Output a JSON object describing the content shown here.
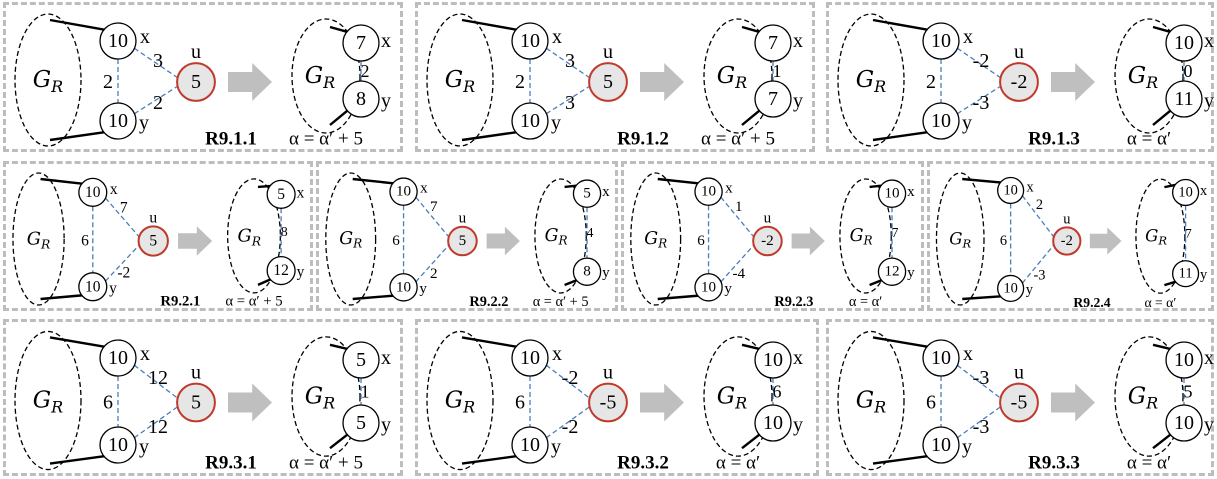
{
  "labels": {
    "gr_main": "G",
    "gr_sub": "R",
    "x": "x",
    "y": "y",
    "u": "u"
  },
  "panels": [
    {
      "id": "R9.1.1",
      "x_val": "10",
      "y_val": "10",
      "xy_w": "2",
      "ux_w": "3",
      "uy_w": "2",
      "u_val": "5",
      "rx": "7",
      "ry": "8",
      "rw": "2",
      "formula": "α = α′ + 5"
    },
    {
      "id": "R9.1.2",
      "x_val": "10",
      "y_val": "10",
      "xy_w": "2",
      "ux_w": "3",
      "uy_w": "3",
      "u_val": "5",
      "rx": "7",
      "ry": "7",
      "rw": "1",
      "formula": "α = α′ + 5"
    },
    {
      "id": "R9.1.3",
      "x_val": "10",
      "y_val": "10",
      "xy_w": "2",
      "ux_w": "-2",
      "uy_w": "-3",
      "u_val": "-2",
      "rx": "10",
      "ry": "11",
      "rw": "0",
      "formula": "α = α′"
    },
    {
      "id": "R9.2.1",
      "x_val": "10",
      "y_val": "10",
      "xy_w": "6",
      "ux_w": "7",
      "uy_w": "-2",
      "u_val": "5",
      "rx": "5",
      "ry": "12",
      "rw": "8",
      "formula": "α = α′ + 5"
    },
    {
      "id": "R9.2.2",
      "x_val": "10",
      "y_val": "10",
      "xy_w": "6",
      "ux_w": "7",
      "uy_w": "2",
      "u_val": "5",
      "rx": "5",
      "ry": "8",
      "rw": "4",
      "formula": "α = α′ + 5"
    },
    {
      "id": "R9.2.3",
      "x_val": "10",
      "y_val": "10",
      "xy_w": "6",
      "ux_w": "1",
      "uy_w": "-4",
      "u_val": "-2",
      "rx": "10",
      "ry": "12",
      "rw": "7",
      "formula": "α = α′"
    },
    {
      "id": "R9.2.4",
      "x_val": "10",
      "y_val": "10",
      "xy_w": "6",
      "ux_w": "2",
      "uy_w": "-3",
      "u_val": "-2",
      "rx": "10",
      "ry": "11",
      "rw": "7",
      "formula": "α = α′"
    },
    {
      "id": "R9.3.1",
      "x_val": "10",
      "y_val": "10",
      "xy_w": "6",
      "ux_w": "12",
      "uy_w": "12",
      "u_val": "5",
      "rx": "5",
      "ry": "5",
      "rw": "1",
      "formula": "α = α′ + 5"
    },
    {
      "id": "R9.3.2",
      "x_val": "10",
      "y_val": "10",
      "xy_w": "6",
      "ux_w": "-2",
      "uy_w": "-2",
      "u_val": "-5",
      "rx": "10",
      "ry": "10",
      "rw": "6",
      "formula": "α = α′"
    },
    {
      "id": "R9.3.3",
      "x_val": "10",
      "y_val": "10",
      "xy_w": "6",
      "ux_w": "-3",
      "uy_w": "-3",
      "u_val": "-5",
      "rx": "10",
      "ry": "10",
      "rw": "5",
      "formula": "α = α′"
    }
  ]
}
